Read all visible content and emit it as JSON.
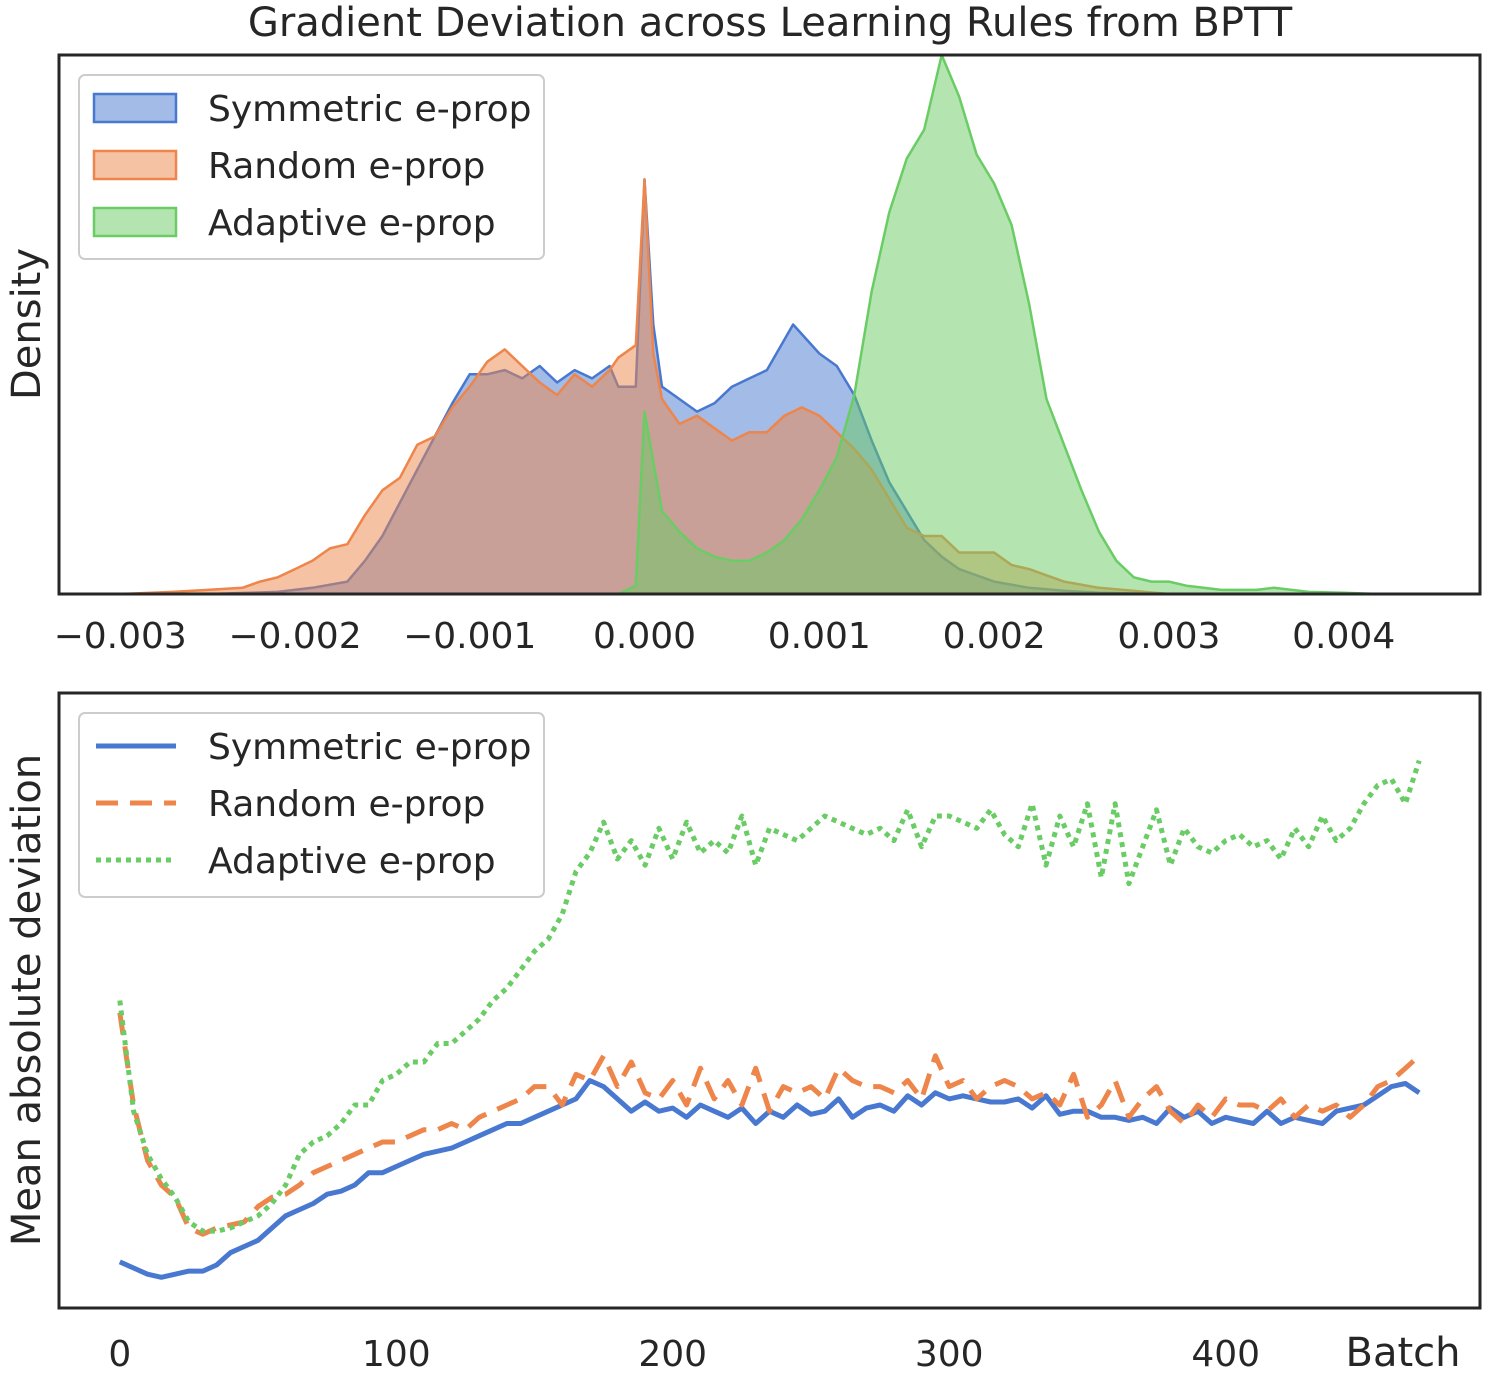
{
  "title": "Gradient Deviation across Learning Rules from BPTT",
  "colors": {
    "symmetric": "#4878d0",
    "random": "#ee854a",
    "adaptive": "#6acc64",
    "axis": "#262626"
  },
  "chart_data": [
    {
      "type": "area",
      "title": "Gradient Deviation across Learning Rules from BPTT",
      "xlabel": "",
      "ylabel": "Density",
      "xlim": [
        -0.00335,
        0.00478
      ],
      "ylim": [
        0,
        1.3
      ],
      "xticks": [
        -0.003,
        -0.002,
        -0.001,
        0.0,
        0.001,
        0.002,
        0.003,
        0.004
      ],
      "xtick_labels": [
        "−0.003",
        "−0.002",
        "−0.001",
        "0.000",
        "0.001",
        "0.002",
        "0.003",
        "0.004"
      ],
      "yticks_shown": false,
      "grid": false,
      "legend": {
        "location": "upper-left",
        "entries": [
          "Symmetric e-prop",
          "Random e-prop",
          "Adaptive e-prop"
        ]
      },
      "series": [
        {
          "name": "Symmetric e-prop",
          "color": "#4878d0",
          "fill_opacity": 0.5,
          "x": [
            -0.003,
            -0.0025,
            -0.0021,
            -0.0019,
            -0.0017,
            -0.0016,
            -0.0015,
            -0.0014,
            -0.0013,
            -0.0012,
            -0.0011,
            -0.001,
            -0.0009,
            -0.0008,
            -0.0007,
            -0.0006,
            -0.0005,
            -0.0004,
            -0.0003,
            -0.0002,
            -0.00015,
            -5e-05,
            0.0,
            5e-05,
            0.0001,
            0.0002,
            0.0003,
            0.0004,
            0.0005,
            0.0006,
            0.0007,
            0.00085,
            0.001,
            0.0011,
            0.0012,
            0.0013,
            0.0014,
            0.0015,
            0.0016,
            0.0017,
            0.0018,
            0.002,
            0.0022,
            0.0024,
            0.0026,
            0.003
          ],
          "y": [
            0.0,
            0.0,
            0.005,
            0.015,
            0.03,
            0.08,
            0.14,
            0.22,
            0.3,
            0.38,
            0.46,
            0.53,
            0.53,
            0.54,
            0.52,
            0.55,
            0.51,
            0.54,
            0.52,
            0.55,
            0.5,
            0.5,
            1.0,
            0.65,
            0.5,
            0.47,
            0.44,
            0.46,
            0.5,
            0.52,
            0.54,
            0.65,
            0.58,
            0.55,
            0.48,
            0.37,
            0.27,
            0.2,
            0.13,
            0.09,
            0.06,
            0.03,
            0.015,
            0.008,
            0.003,
            0.0
          ]
        },
        {
          "name": "Random e-prop",
          "color": "#ee854a",
          "fill_opacity": 0.5,
          "x": [
            -0.003,
            -0.0027,
            -0.0025,
            -0.0023,
            -0.0022,
            -0.0021,
            -0.002,
            -0.0019,
            -0.0018,
            -0.0017,
            -0.0016,
            -0.0015,
            -0.0014,
            -0.0013,
            -0.0012,
            -0.0011,
            -0.001,
            -0.0009,
            -0.0008,
            -0.0007,
            -0.0006,
            -0.0005,
            -0.0004,
            -0.0003,
            -0.0002,
            -0.00015,
            -5e-05,
            0.0,
            5e-05,
            0.0001,
            0.0002,
            0.0003,
            0.0004,
            0.0005,
            0.0006,
            0.0007,
            0.0008,
            0.0009,
            0.001,
            0.0011,
            0.0012,
            0.0013,
            0.0014,
            0.0015,
            0.0016,
            0.0017,
            0.0018,
            0.0019,
            0.002,
            0.0021,
            0.0022,
            0.0023,
            0.0024,
            0.0026,
            0.003
          ],
          "y": [
            0.0,
            0.005,
            0.01,
            0.015,
            0.03,
            0.04,
            0.06,
            0.08,
            0.11,
            0.12,
            0.19,
            0.25,
            0.28,
            0.36,
            0.38,
            0.45,
            0.5,
            0.56,
            0.59,
            0.55,
            0.51,
            0.48,
            0.53,
            0.5,
            0.54,
            0.57,
            0.6,
            1.0,
            0.58,
            0.47,
            0.41,
            0.43,
            0.4,
            0.37,
            0.39,
            0.39,
            0.43,
            0.45,
            0.43,
            0.39,
            0.35,
            0.3,
            0.23,
            0.16,
            0.14,
            0.14,
            0.1,
            0.1,
            0.1,
            0.07,
            0.06,
            0.045,
            0.03,
            0.015,
            0.0
          ]
        },
        {
          "name": "Adaptive e-prop",
          "color": "#6acc64",
          "fill_opacity": 0.5,
          "x": [
            -0.0005,
            -0.00015,
            -5e-05,
            0.0,
            0.0001,
            0.0002,
            0.0003,
            0.0004,
            0.0005,
            0.0006,
            0.0007,
            0.0008,
            0.0009,
            0.001,
            0.0011,
            0.0012,
            0.0013,
            0.0014,
            0.0015,
            0.0016,
            0.0017,
            0.0018,
            0.0019,
            0.002,
            0.0021,
            0.0022,
            0.0023,
            0.0024,
            0.0025,
            0.0026,
            0.0027,
            0.0028,
            0.0029,
            0.003,
            0.0031,
            0.0032,
            0.0033,
            0.0034,
            0.0035,
            0.0036,
            0.0038,
            0.004,
            0.0042
          ],
          "y": [
            0.0,
            0.0,
            0.02,
            0.44,
            0.2,
            0.15,
            0.11,
            0.09,
            0.08,
            0.08,
            0.1,
            0.13,
            0.18,
            0.25,
            0.33,
            0.48,
            0.73,
            0.92,
            1.05,
            1.12,
            1.3,
            1.2,
            1.06,
            0.99,
            0.89,
            0.7,
            0.47,
            0.36,
            0.25,
            0.15,
            0.08,
            0.04,
            0.03,
            0.03,
            0.02,
            0.015,
            0.01,
            0.01,
            0.01,
            0.015,
            0.005,
            0.003,
            0.0
          ]
        }
      ]
    },
    {
      "type": "line",
      "xlabel": "Batch",
      "ylabel": "Mean absolute deviation",
      "xlim": [
        -22,
        492
      ],
      "ylim": [
        0,
        1
      ],
      "xticks": [
        0,
        100,
        200,
        300,
        400
      ],
      "xtick_labels": [
        "0",
        "100",
        "200",
        "300",
        "400"
      ],
      "yticks_shown": false,
      "grid": false,
      "legend": {
        "location": "upper-left",
        "entries": [
          "Symmetric e-prop",
          "Random e-prop",
          "Adaptive e-prop"
        ]
      },
      "series": [
        {
          "name": "Symmetric e-prop",
          "color": "#4878d0",
          "style": "solid",
          "x": [
            0,
            5,
            10,
            15,
            20,
            25,
            30,
            35,
            40,
            45,
            50,
            55,
            60,
            65,
            70,
            75,
            80,
            85,
            90,
            95,
            100,
            105,
            110,
            115,
            120,
            125,
            130,
            135,
            140,
            145,
            150,
            155,
            160,
            165,
            170,
            175,
            180,
            185,
            190,
            195,
            200,
            205,
            210,
            215,
            220,
            225,
            230,
            235,
            240,
            245,
            250,
            255,
            260,
            265,
            270,
            275,
            280,
            285,
            290,
            295,
            300,
            305,
            310,
            315,
            320,
            325,
            330,
            335,
            340,
            345,
            350,
            355,
            360,
            365,
            370,
            375,
            380,
            385,
            390,
            395,
            400,
            405,
            410,
            415,
            420,
            425,
            430,
            435,
            440,
            445,
            450,
            455,
            460,
            465,
            470
          ],
          "y": [
            0.075,
            0.065,
            0.055,
            0.05,
            0.055,
            0.06,
            0.06,
            0.07,
            0.09,
            0.1,
            0.11,
            0.13,
            0.15,
            0.16,
            0.17,
            0.185,
            0.19,
            0.2,
            0.22,
            0.22,
            0.23,
            0.24,
            0.25,
            0.255,
            0.26,
            0.27,
            0.28,
            0.29,
            0.3,
            0.3,
            0.31,
            0.32,
            0.33,
            0.34,
            0.37,
            0.36,
            0.34,
            0.32,
            0.335,
            0.32,
            0.325,
            0.31,
            0.33,
            0.32,
            0.31,
            0.325,
            0.3,
            0.32,
            0.31,
            0.33,
            0.315,
            0.32,
            0.34,
            0.31,
            0.325,
            0.33,
            0.32,
            0.345,
            0.33,
            0.35,
            0.34,
            0.345,
            0.34,
            0.335,
            0.335,
            0.34,
            0.325,
            0.345,
            0.315,
            0.32,
            0.32,
            0.31,
            0.31,
            0.305,
            0.31,
            0.3,
            0.325,
            0.31,
            0.32,
            0.3,
            0.31,
            0.305,
            0.3,
            0.32,
            0.3,
            0.31,
            0.305,
            0.3,
            0.32,
            0.325,
            0.33,
            0.345,
            0.36,
            0.365,
            0.35
          ],
          "scale_note": ""
        },
        {
          "name": "Random e-prop",
          "color": "#ee854a",
          "style": "dashed",
          "x": [
            0,
            5,
            10,
            15,
            20,
            25,
            30,
            35,
            40,
            45,
            50,
            55,
            60,
            65,
            70,
            75,
            80,
            85,
            90,
            95,
            100,
            105,
            110,
            115,
            120,
            125,
            130,
            135,
            140,
            145,
            150,
            155,
            160,
            165,
            170,
            175,
            180,
            185,
            190,
            195,
            200,
            205,
            210,
            215,
            220,
            225,
            230,
            235,
            240,
            245,
            250,
            255,
            260,
            265,
            270,
            275,
            280,
            285,
            290,
            295,
            300,
            305,
            310,
            315,
            320,
            325,
            330,
            335,
            340,
            345,
            350,
            355,
            360,
            365,
            370,
            375,
            380,
            385,
            390,
            395,
            400,
            405,
            410,
            415,
            420,
            425,
            430,
            435,
            440,
            445,
            450,
            455,
            460,
            465,
            470
          ],
          "y": [
            0.48,
            0.33,
            0.24,
            0.2,
            0.18,
            0.13,
            0.12,
            0.13,
            0.135,
            0.14,
            0.165,
            0.18,
            0.185,
            0.2,
            0.22,
            0.23,
            0.24,
            0.25,
            0.26,
            0.27,
            0.27,
            0.28,
            0.29,
            0.29,
            0.3,
            0.29,
            0.31,
            0.32,
            0.33,
            0.34,
            0.36,
            0.36,
            0.33,
            0.38,
            0.37,
            0.41,
            0.36,
            0.4,
            0.35,
            0.34,
            0.37,
            0.33,
            0.39,
            0.34,
            0.37,
            0.33,
            0.39,
            0.32,
            0.36,
            0.35,
            0.36,
            0.34,
            0.39,
            0.37,
            0.36,
            0.36,
            0.35,
            0.37,
            0.34,
            0.41,
            0.36,
            0.37,
            0.34,
            0.36,
            0.37,
            0.36,
            0.34,
            0.35,
            0.33,
            0.38,
            0.31,
            0.33,
            0.37,
            0.31,
            0.34,
            0.36,
            0.32,
            0.3,
            0.33,
            0.31,
            0.34,
            0.33,
            0.33,
            0.32,
            0.34,
            0.31,
            0.33,
            0.32,
            0.33,
            0.31,
            0.33,
            0.36,
            0.37,
            0.39,
            0.41
          ],
          "scale_note": ""
        },
        {
          "name": "Adaptive e-prop",
          "color": "#6acc64",
          "style": "dotted",
          "x": [
            0,
            5,
            10,
            15,
            20,
            25,
            30,
            35,
            40,
            45,
            50,
            55,
            60,
            65,
            70,
            75,
            80,
            85,
            90,
            95,
            100,
            105,
            110,
            115,
            120,
            125,
            130,
            135,
            140,
            145,
            150,
            155,
            160,
            165,
            170,
            175,
            180,
            185,
            190,
            195,
            200,
            205,
            210,
            215,
            220,
            225,
            230,
            235,
            240,
            245,
            250,
            255,
            260,
            265,
            270,
            275,
            280,
            285,
            290,
            295,
            300,
            305,
            310,
            315,
            320,
            325,
            330,
            335,
            340,
            345,
            350,
            355,
            360,
            365,
            370,
            375,
            380,
            385,
            390,
            395,
            400,
            405,
            410,
            415,
            420,
            425,
            430,
            435,
            440,
            445,
            450,
            455,
            460,
            465,
            470
          ],
          "y": [
            0.5,
            0.32,
            0.25,
            0.21,
            0.18,
            0.14,
            0.125,
            0.125,
            0.13,
            0.14,
            0.15,
            0.17,
            0.2,
            0.25,
            0.27,
            0.28,
            0.3,
            0.33,
            0.33,
            0.37,
            0.38,
            0.4,
            0.4,
            0.43,
            0.43,
            0.45,
            0.47,
            0.5,
            0.52,
            0.55,
            0.58,
            0.6,
            0.64,
            0.71,
            0.74,
            0.79,
            0.73,
            0.76,
            0.72,
            0.78,
            0.73,
            0.79,
            0.74,
            0.76,
            0.74,
            0.8,
            0.72,
            0.78,
            0.77,
            0.76,
            0.78,
            0.8,
            0.79,
            0.78,
            0.77,
            0.78,
            0.76,
            0.81,
            0.75,
            0.8,
            0.8,
            0.79,
            0.78,
            0.81,
            0.77,
            0.75,
            0.82,
            0.72,
            0.8,
            0.75,
            0.82,
            0.7,
            0.82,
            0.69,
            0.75,
            0.81,
            0.72,
            0.78,
            0.75,
            0.74,
            0.76,
            0.77,
            0.75,
            0.76,
            0.73,
            0.78,
            0.75,
            0.8,
            0.76,
            0.78,
            0.82,
            0.85,
            0.86,
            0.82,
            0.89
          ],
          "scale_note": ""
        }
      ]
    }
  ]
}
